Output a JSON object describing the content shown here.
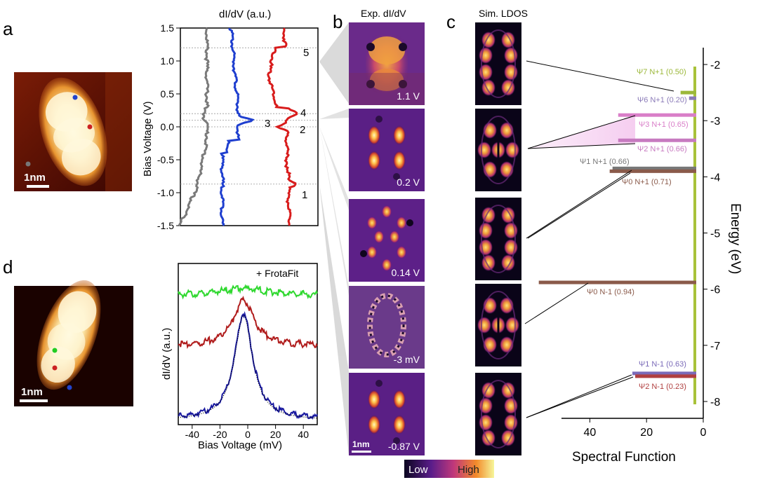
{
  "panel_labels": {
    "a": "a",
    "b": "b",
    "c": "c",
    "d": "d"
  },
  "panel_a": {
    "scale_bar": "1nm",
    "dot_colors": [
      "#2244cc",
      "#cc2222",
      "#777777"
    ]
  },
  "panel_d": {
    "scale_bar": "1nm",
    "dot_colors": [
      "#22cc22",
      "#cc2222",
      "#2244cc"
    ]
  },
  "chart_a": {
    "type": "line",
    "title": "dI/dV (a.u.)",
    "ylabel": "Bias Voltage (V)",
    "ylim": [
      -1.5,
      1.5
    ],
    "yticks": [
      "1.5",
      "1.0",
      "0.5",
      "0.0",
      "-0.5",
      "-1.0",
      "-1.5"
    ],
    "series": [
      {
        "name": "gray",
        "color": "#7a7a7a"
      },
      {
        "name": "blue",
        "color": "#1f3fcf"
      },
      {
        "name": "red",
        "color": "#d81c1c"
      }
    ],
    "peaks": [
      {
        "label": "5",
        "v": 1.2
      },
      {
        "label": "4",
        "v": 0.2
      },
      {
        "label": "3",
        "v": 0.1
      },
      {
        "label": "2",
        "v": 0.0
      },
      {
        "label": "1",
        "v": -0.87
      }
    ]
  },
  "chart_d": {
    "type": "line",
    "legend": "+ FrotaFit",
    "xlabel": "Bias Voltage (mV)",
    "ylabel": "dI/dV (a.u.)",
    "xlim": [
      -50,
      50
    ],
    "xticks": [
      "-40",
      "-20",
      "0",
      "20",
      "40"
    ],
    "series": [
      {
        "name": "green",
        "color": "#2fd82f"
      },
      {
        "name": "red",
        "color": "#b01c1c"
      },
      {
        "name": "blue",
        "color": "#1a1aa0"
      },
      {
        "name": "FrotaFit",
        "color": "#000000"
      }
    ]
  },
  "panel_b": {
    "title": "Exp. dI/dV",
    "maps": [
      "1.1 V",
      "0.2 V",
      "0.14 V",
      "-3 mV",
      "-0.87 V"
    ],
    "scale_bar": "1nm",
    "colorbar": {
      "low": "Low",
      "high": "High"
    }
  },
  "panel_c": {
    "title": "Sim. LDOS",
    "xlabel": "Spectral Function",
    "ylabel": "Energy (eV)",
    "xticks": [
      "40",
      "20",
      "0"
    ],
    "yticks": [
      "-2",
      "-3",
      "-4",
      "-5",
      "-6",
      "-7",
      "-8"
    ],
    "ylim": [
      -8.3,
      -1.7
    ],
    "xlim": [
      50,
      0
    ],
    "states": [
      {
        "label": "Ψ7 N+1 (0.50)",
        "energy": -2.5,
        "color": "#9cb83a"
      },
      {
        "label": "Ψ6 N+1 (0.20)",
        "energy": -2.6,
        "color": "#8a7ab8"
      },
      {
        "label": "Ψ3 N+1 (0.65)",
        "energy": -2.9,
        "color": "#d97ec8"
      },
      {
        "label": "Ψ2 N+1 (0.66)",
        "energy": -3.35,
        "color": "#c77ac0"
      },
      {
        "label": "Ψ1 N+1 (0.66)",
        "energy": -3.85,
        "color": "#777777"
      },
      {
        "label": "Ψ0 N+1 (0.71)",
        "energy": -3.9,
        "color": "#8a5a4a"
      },
      {
        "label": "Ψ0 N-1 (0.94)",
        "energy": -5.88,
        "color": "#8a5a4a"
      },
      {
        "label": "Ψ1 N-1 (0.63)",
        "energy": -7.5,
        "color": "#7a6ab8"
      },
      {
        "label": "Ψ2 N-1 (0.23)",
        "energy": -7.55,
        "color": "#b04040"
      }
    ]
  }
}
